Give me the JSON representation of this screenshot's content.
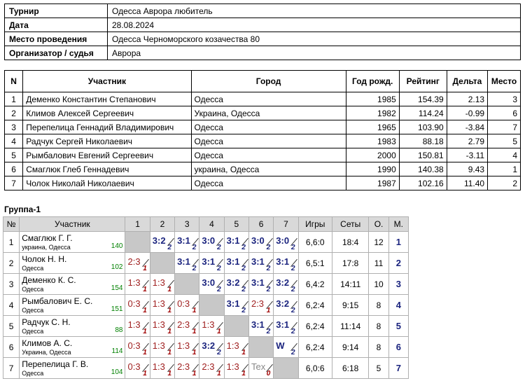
{
  "info": [
    {
      "label": "Турнир",
      "value": "Одесса  Аврора любитель"
    },
    {
      "label": "Дата",
      "value": "28.08.2024"
    },
    {
      "label": "Место проведения",
      "value": "Одесса Черноморского козачества 80"
    },
    {
      "label": "Организатор / судья",
      "value": "Аврора"
    }
  ],
  "players_table": {
    "headers": [
      "N",
      "Участник",
      "Город",
      "Год рожд.",
      "Рейтинг",
      "Дельта",
      "Место"
    ],
    "rows": [
      [
        "1",
        "Деменко Константин Степанович",
        "Одесса",
        "1985",
        "154.39",
        "2.13",
        "3"
      ],
      [
        "2",
        "Климов Алексей Сергеевич",
        "Украина, Одесса",
        "1982",
        "114.24",
        "-0.99",
        "6"
      ],
      [
        "3",
        "Перепелица Геннадий Владимирович",
        "Одесса",
        "1965",
        "103.90",
        "-3.84",
        "7"
      ],
      [
        "4",
        "Радчук Сергей Николаевич",
        "Одесса",
        "1983",
        "88.18",
        "2.79",
        "5"
      ],
      [
        "5",
        "Рымбалович Евгений Сергеевич",
        "Одесса",
        "2000",
        "150.81",
        "-3.11",
        "4"
      ],
      [
        "6",
        "Смаглюк Глеб Геннадевич",
        "украина, Одесса",
        "1990",
        "140.38",
        "9.43",
        "1"
      ],
      [
        "7",
        "Чолок Николай Николаевич",
        "Одесса",
        "1987",
        "102.16",
        "11.40",
        "2"
      ]
    ]
  },
  "group": {
    "title": "Группа-1",
    "headers": [
      "№",
      "Участник",
      "1",
      "2",
      "3",
      "4",
      "5",
      "6",
      "7",
      "Игры",
      "Сеты",
      "О.",
      "М."
    ],
    "rows": [
      {
        "n": "1",
        "name": "Смаглюк Г. Г.",
        "city": "украина, Одесса",
        "rating": "140",
        "cells": [
          null,
          [
            "3:2",
            "2",
            "w"
          ],
          [
            "3:1",
            "2",
            "w"
          ],
          [
            "3:0",
            "2",
            "w"
          ],
          [
            "3:1",
            "2",
            "w"
          ],
          [
            "3:0",
            "2",
            "w"
          ],
          [
            "3:0",
            "2",
            "w"
          ]
        ],
        "games": "6,6:0",
        "sets": "18:4",
        "points": "12",
        "place": "1"
      },
      {
        "n": "2",
        "name": "Чолок Н. Н.",
        "city": "Одесса",
        "rating": "102",
        "cells": [
          [
            "2:3",
            "1",
            "l"
          ],
          null,
          [
            "3:1",
            "2",
            "w"
          ],
          [
            "3:1",
            "2",
            "w"
          ],
          [
            "3:1",
            "2",
            "w"
          ],
          [
            "3:1",
            "2",
            "w"
          ],
          [
            "3:1",
            "2",
            "w"
          ]
        ],
        "games": "6,5:1",
        "sets": "17:8",
        "points": "11",
        "place": "2"
      },
      {
        "n": "3",
        "name": "Деменко К. С.",
        "city": "Одесса",
        "rating": "154",
        "cells": [
          [
            "1:3",
            "1",
            "l"
          ],
          [
            "1:3",
            "1",
            "l"
          ],
          null,
          [
            "3:0",
            "2",
            "w"
          ],
          [
            "3:2",
            "2",
            "w"
          ],
          [
            "3:1",
            "2",
            "w"
          ],
          [
            "3:2",
            "2",
            "w"
          ]
        ],
        "games": "6,4:2",
        "sets": "14:11",
        "points": "10",
        "place": "3"
      },
      {
        "n": "4",
        "name": "Рымбалович Е. С.",
        "city": "Одесса",
        "rating": "151",
        "cells": [
          [
            "0:3",
            "1",
            "l"
          ],
          [
            "1:3",
            "1",
            "l"
          ],
          [
            "0:3",
            "1",
            "l"
          ],
          null,
          [
            "3:1",
            "2",
            "w"
          ],
          [
            "2:3",
            "1",
            "l"
          ],
          [
            "3:2",
            "2",
            "w"
          ]
        ],
        "games": "6,2:4",
        "sets": "9:15",
        "points": "8",
        "place": "4"
      },
      {
        "n": "5",
        "name": "Радчук С. Н.",
        "city": "Одесса",
        "rating": "88",
        "cells": [
          [
            "1:3",
            "1",
            "l"
          ],
          [
            "1:3",
            "1",
            "l"
          ],
          [
            "2:3",
            "1",
            "l"
          ],
          [
            "1:3",
            "1",
            "l"
          ],
          null,
          [
            "3:1",
            "2",
            "w"
          ],
          [
            "3:1",
            "2",
            "w"
          ]
        ],
        "games": "6,2:4",
        "sets": "11:14",
        "points": "8",
        "place": "5"
      },
      {
        "n": "6",
        "name": "Климов А. С.",
        "city": "Украина, Одесса",
        "rating": "114",
        "cells": [
          [
            "0:3",
            "1",
            "l"
          ],
          [
            "1:3",
            "1",
            "l"
          ],
          [
            "1:3",
            "1",
            "l"
          ],
          [
            "3:2",
            "2",
            "w"
          ],
          [
            "1:3",
            "1",
            "l"
          ],
          null,
          [
            "W",
            "2",
            "w"
          ]
        ],
        "games": "6,2:4",
        "sets": "9:14",
        "points": "8",
        "place": "6"
      },
      {
        "n": "7",
        "name": "Перепелица Г. В.",
        "city": "Одесса",
        "rating": "104",
        "cells": [
          [
            "0:3",
            "1",
            "l"
          ],
          [
            "1:3",
            "1",
            "l"
          ],
          [
            "2:3",
            "1",
            "l"
          ],
          [
            "2:3",
            "1",
            "l"
          ],
          [
            "1:3",
            "1",
            "l"
          ],
          [
            "Tex",
            "0",
            "t"
          ],
          null
        ],
        "games": "6,0:6",
        "sets": "6:18",
        "points": "5",
        "place": "7"
      }
    ]
  }
}
